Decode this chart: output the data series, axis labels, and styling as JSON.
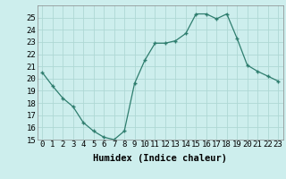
{
  "x": [
    0,
    1,
    2,
    3,
    4,
    5,
    6,
    7,
    8,
    9,
    10,
    11,
    12,
    13,
    14,
    15,
    16,
    17,
    18,
    19,
    20,
    21,
    22,
    23
  ],
  "y": [
    20.5,
    19.4,
    18.4,
    17.7,
    16.4,
    15.7,
    15.2,
    15.0,
    15.7,
    19.6,
    21.5,
    22.9,
    22.9,
    23.1,
    23.7,
    25.3,
    25.3,
    24.9,
    25.3,
    23.3,
    21.1,
    20.6,
    20.2,
    19.8
  ],
  "line_color": "#2e7d6e",
  "marker": "+",
  "bg_color": "#cdeeed",
  "grid_color": "#aed8d4",
  "xlabel": "Humidex (Indice chaleur)",
  "ylim": [
    15,
    26
  ],
  "yticks": [
    15,
    16,
    17,
    18,
    19,
    20,
    21,
    22,
    23,
    24,
    25
  ],
  "xticks": [
    0,
    1,
    2,
    3,
    4,
    5,
    6,
    7,
    8,
    9,
    10,
    11,
    12,
    13,
    14,
    15,
    16,
    17,
    18,
    19,
    20,
    21,
    22,
    23
  ],
  "xtick_labels": [
    "0",
    "1",
    "2",
    "3",
    "4",
    "5",
    "6",
    "7",
    "8",
    "9",
    "10",
    "11",
    "12",
    "13",
    "14",
    "15",
    "16",
    "17",
    "18",
    "19",
    "20",
    "21",
    "22",
    "23"
  ],
  "tick_fontsize": 6.5,
  "xlabel_fontsize": 7.5
}
